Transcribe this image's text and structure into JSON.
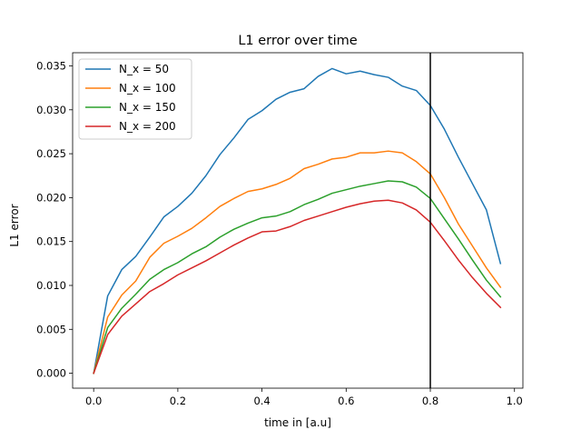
{
  "chart_data": {
    "type": "line",
    "title": "L1 error over time",
    "xlabel": "time in [a.u]",
    "ylabel": "L1 error",
    "xlim": [
      -0.05,
      1.02
    ],
    "ylim": [
      -0.0017,
      0.0365
    ],
    "xticks": [
      0.0,
      0.2,
      0.4,
      0.6,
      0.8,
      1.0
    ],
    "xtick_labels": [
      "0.0",
      "0.2",
      "0.4",
      "0.6",
      "0.8",
      "1.0"
    ],
    "yticks": [
      0.0,
      0.005,
      0.01,
      0.015,
      0.02,
      0.025,
      0.03,
      0.035
    ],
    "ytick_labels": [
      "0.000",
      "0.005",
      "0.010",
      "0.015",
      "0.020",
      "0.025",
      "0.030",
      "0.035"
    ],
    "grid": false,
    "legend_position": "top-left",
    "vline": {
      "x": 0.8,
      "color": "#000000"
    },
    "x": [
      0.0,
      0.0333,
      0.0667,
      0.1,
      0.1333,
      0.1667,
      0.2,
      0.2333,
      0.2667,
      0.3,
      0.3333,
      0.3667,
      0.4,
      0.4333,
      0.4667,
      0.5,
      0.5333,
      0.5667,
      0.6,
      0.6333,
      0.6667,
      0.7,
      0.7333,
      0.7667,
      0.8,
      0.8333,
      0.8667,
      0.9,
      0.9333,
      0.9667
    ],
    "series": [
      {
        "name": "N_x = 50",
        "color": "#1f77b4",
        "values": [
          0.0,
          0.0088,
          0.0118,
          0.0133,
          0.0155,
          0.0178,
          0.019,
          0.0205,
          0.0225,
          0.0249,
          0.0268,
          0.0289,
          0.0299,
          0.0312,
          0.032,
          0.0324,
          0.0338,
          0.0347,
          0.0341,
          0.0344,
          0.034,
          0.0337,
          0.0327,
          0.0322,
          0.0305,
          0.0278,
          0.0246,
          0.0216,
          0.0186,
          0.0125
        ]
      },
      {
        "name": "N_x = 100",
        "color": "#ff7f0e",
        "values": [
          0.0,
          0.0064,
          0.0089,
          0.0105,
          0.0132,
          0.0148,
          0.0156,
          0.0165,
          0.0177,
          0.019,
          0.0199,
          0.0207,
          0.021,
          0.0215,
          0.0222,
          0.0233,
          0.0238,
          0.0244,
          0.0246,
          0.0251,
          0.0251,
          0.0253,
          0.0251,
          0.0241,
          0.0227,
          0.02,
          0.017,
          0.0145,
          0.012,
          0.0098
        ]
      },
      {
        "name": "N_x = 150",
        "color": "#2ca02c",
        "values": [
          0.0,
          0.0052,
          0.0074,
          0.009,
          0.0107,
          0.0118,
          0.0126,
          0.0136,
          0.0144,
          0.0155,
          0.0164,
          0.0171,
          0.0177,
          0.0179,
          0.0184,
          0.0192,
          0.0198,
          0.0205,
          0.0209,
          0.0213,
          0.0216,
          0.0219,
          0.0218,
          0.0212,
          0.0199,
          0.0176,
          0.0153,
          0.0129,
          0.0106,
          0.0087
        ]
      },
      {
        "name": "N_x = 200",
        "color": "#d62728",
        "values": [
          0.0,
          0.0044,
          0.0065,
          0.0079,
          0.0093,
          0.0102,
          0.0112,
          0.012,
          0.0128,
          0.0137,
          0.0146,
          0.0154,
          0.0161,
          0.0162,
          0.0167,
          0.0174,
          0.0179,
          0.0184,
          0.0189,
          0.0193,
          0.0196,
          0.0197,
          0.0194,
          0.0186,
          0.0172,
          0.0151,
          0.0129,
          0.0109,
          0.0091,
          0.0075
        ]
      }
    ]
  }
}
